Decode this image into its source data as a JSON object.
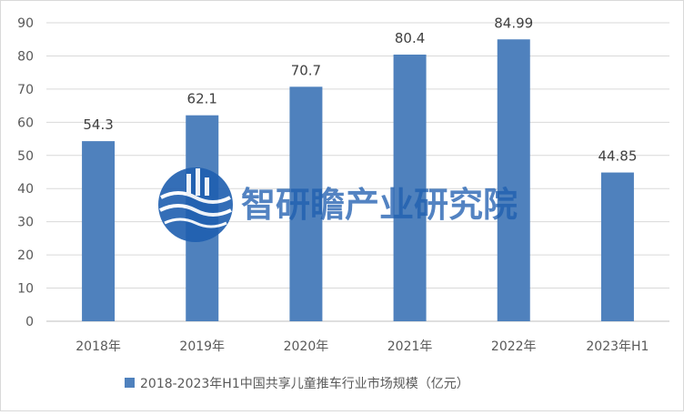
{
  "chart_data": {
    "type": "bar",
    "categories": [
      "2018年",
      "2019年",
      "2020年",
      "2021年",
      "2022年",
      "2023年H1"
    ],
    "series": [
      {
        "name": "2018-2023年H1中国共享儿童推车行业市场规模（亿元）",
        "values": [
          54.3,
          62.1,
          70.7,
          80.4,
          84.99,
          44.85
        ],
        "labels": [
          "54.3",
          "62.1",
          "70.7",
          "80.4",
          "84.99",
          "44.85"
        ],
        "color": "#4f81bd"
      }
    ],
    "ylim": [
      0,
      90
    ],
    "yticks": [
      "0",
      "10",
      "20",
      "30",
      "40",
      "50",
      "60",
      "70",
      "80",
      "90"
    ],
    "grid": true,
    "legend": "bottom"
  },
  "watermark": {
    "text": "智研瞻产业研究院",
    "icon": "globe-waves-logo",
    "color": "#1f5fb0"
  }
}
